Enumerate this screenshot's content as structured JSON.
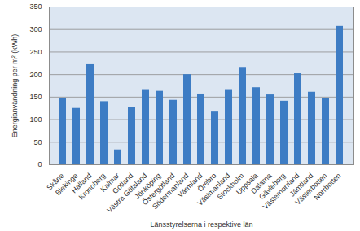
{
  "chart_data": {
    "type": "bar",
    "x_label": "Länsstyrelserna i respektive län",
    "y_label": "Energianvändning per m² (kWh)",
    "categories": [
      "Skåne",
      "Blekinge",
      "Halland",
      "Kronoberg",
      "Kalmar",
      "Gotland",
      "Västra Götaland",
      "Jönköping",
      "Östergötland",
      "Södermanland",
      "Värmland",
      "Örebro",
      "Västmanland",
      "Stockholm",
      "Uppsala",
      "Dalarna",
      "Gävleborg",
      "Västernorrland",
      "Jämtland",
      "Västerbotten",
      "Norrbotten"
    ],
    "values": [
      148,
      125,
      222,
      140,
      33,
      127,
      165,
      163,
      143,
      200,
      157,
      117,
      165,
      216,
      171,
      155,
      141,
      202,
      161,
      147,
      307
    ],
    "color": "#3d7cc4",
    "ylim": [
      0,
      350
    ],
    "yticks": [
      0,
      50,
      100,
      150,
      200,
      250,
      300,
      350
    ],
    "grid": true
  }
}
